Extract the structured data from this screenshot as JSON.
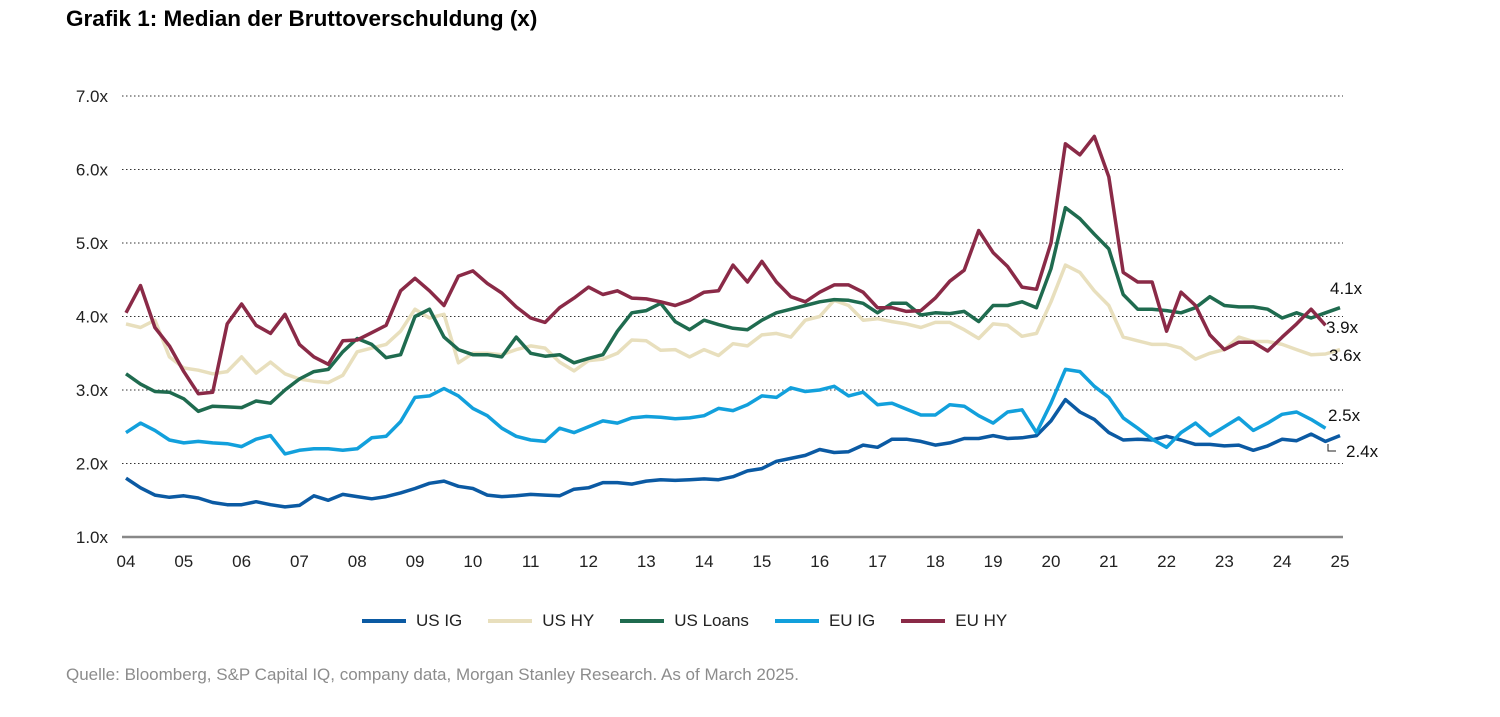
{
  "title": "Grafik 1: Median der Bruttoverschuldung (x)",
  "source": "Quelle: Bloomberg, S&P Capital IQ, company data, Morgan Stanley Research. As of March 2025.",
  "chart_data": {
    "type": "line",
    "title": "Grafik 1: Median der Bruttoverschuldung (x)",
    "xlabel": "",
    "ylabel": "",
    "x_start": 2004,
    "x_step": "quarterly",
    "xlim": [
      2004,
      2025
    ],
    "ylim": [
      1.0,
      7.0
    ],
    "x_tick_labels": [
      "04",
      "05",
      "06",
      "07",
      "08",
      "09",
      "10",
      "11",
      "12",
      "13",
      "14",
      "15",
      "16",
      "17",
      "18",
      "19",
      "20",
      "21",
      "22",
      "23",
      "24",
      "25"
    ],
    "y_ticks": [
      1,
      2,
      3,
      4,
      5,
      6,
      7
    ],
    "y_tick_labels": [
      "1.0x",
      "2.0x",
      "3.0x",
      "4.0x",
      "5.0x",
      "6.0x",
      "7.0x"
    ],
    "grid": "horizontal dotted",
    "legend": "bottom",
    "series": [
      {
        "name": "US IG",
        "color": "#0b5aa3",
        "end_label": "2.4x",
        "values": [
          1.8,
          1.67,
          1.57,
          1.54,
          1.56,
          1.53,
          1.47,
          1.44,
          1.44,
          1.48,
          1.44,
          1.41,
          1.43,
          1.56,
          1.5,
          1.58,
          1.55,
          1.52,
          1.55,
          1.6,
          1.66,
          1.73,
          1.76,
          1.69,
          1.66,
          1.57,
          1.55,
          1.56,
          1.58,
          1.57,
          1.56,
          1.65,
          1.67,
          1.74,
          1.74,
          1.72,
          1.76,
          1.78,
          1.77,
          1.78,
          1.79,
          1.78,
          1.82,
          1.9,
          1.93,
          2.03,
          2.07,
          2.11,
          2.19,
          2.15,
          2.16,
          2.25,
          2.22,
          2.33,
          2.33,
          2.3,
          2.25,
          2.28,
          2.34,
          2.34,
          2.38,
          2.34,
          2.35,
          2.38,
          2.58,
          2.87,
          2.7,
          2.6,
          2.42,
          2.32,
          2.33,
          2.32,
          2.37,
          2.32,
          2.26,
          2.26,
          2.24,
          2.25,
          2.18,
          2.24,
          2.33,
          2.31,
          2.4,
          2.3,
          2.38
        ]
      },
      {
        "name": "US HY",
        "color": "#e8dfbd",
        "end_label": "3.6x",
        "values": [
          3.9,
          3.85,
          3.95,
          3.45,
          3.3,
          3.27,
          3.22,
          3.25,
          3.45,
          3.23,
          3.38,
          3.22,
          3.15,
          3.12,
          3.1,
          3.2,
          3.52,
          3.57,
          3.62,
          3.8,
          4.1,
          3.98,
          4.03,
          3.37,
          3.5,
          3.5,
          3.48,
          3.55,
          3.6,
          3.57,
          3.38,
          3.26,
          3.4,
          3.42,
          3.5,
          3.68,
          3.67,
          3.54,
          3.55,
          3.45,
          3.55,
          3.47,
          3.63,
          3.6,
          3.75,
          3.77,
          3.72,
          3.95,
          4.0,
          4.22,
          4.15,
          3.95,
          3.97,
          3.93,
          3.9,
          3.85,
          3.92,
          3.92,
          3.82,
          3.7,
          3.9,
          3.88,
          3.73,
          3.77,
          4.2,
          4.7,
          4.6,
          4.35,
          4.15,
          3.72,
          3.67,
          3.62,
          3.62,
          3.57,
          3.42,
          3.5,
          3.55,
          3.72,
          3.66,
          3.66,
          3.62,
          3.55,
          3.48,
          3.49,
          3.55
        ]
      },
      {
        "name": "US Loans",
        "color": "#1f6b4f",
        "end_label": "4.1x",
        "values": [
          3.22,
          3.08,
          2.98,
          2.97,
          2.88,
          2.71,
          2.78,
          2.77,
          2.76,
          2.85,
          2.82,
          3.0,
          3.15,
          3.25,
          3.28,
          3.52,
          3.7,
          3.62,
          3.44,
          3.48,
          4.0,
          4.1,
          3.72,
          3.55,
          3.48,
          3.48,
          3.45,
          3.72,
          3.5,
          3.46,
          3.48,
          3.37,
          3.43,
          3.48,
          3.8,
          4.05,
          4.08,
          4.18,
          3.93,
          3.82,
          3.95,
          3.89,
          3.84,
          3.82,
          3.95,
          4.05,
          4.1,
          4.15,
          4.2,
          4.23,
          4.22,
          4.18,
          4.05,
          4.18,
          4.18,
          4.02,
          4.05,
          4.04,
          4.07,
          3.93,
          4.15,
          4.15,
          4.2,
          4.12,
          4.65,
          5.48,
          5.33,
          5.12,
          4.92,
          4.3,
          4.1,
          4.1,
          4.08,
          4.05,
          4.12,
          4.27,
          4.15,
          4.13,
          4.13,
          4.1,
          3.98,
          4.05,
          3.98,
          4.05,
          4.12
        ]
      },
      {
        "name": "EU IG",
        "color": "#12a0dc",
        "end_label": "2.5x",
        "values": [
          2.42,
          2.55,
          2.45,
          2.32,
          2.28,
          2.3,
          2.28,
          2.27,
          2.23,
          2.33,
          2.38,
          2.13,
          2.18,
          2.2,
          2.2,
          2.18,
          2.2,
          2.35,
          2.37,
          2.57,
          2.9,
          2.92,
          3.02,
          2.92,
          2.75,
          2.65,
          2.48,
          2.37,
          2.32,
          2.3,
          2.48,
          2.42,
          2.5,
          2.58,
          2.55,
          2.62,
          2.64,
          2.63,
          2.61,
          2.62,
          2.65,
          2.75,
          2.72,
          2.8,
          2.92,
          2.9,
          3.03,
          2.98,
          3.0,
          3.05,
          2.92,
          2.97,
          2.8,
          2.82,
          2.74,
          2.66,
          2.66,
          2.8,
          2.78,
          2.65,
          2.55,
          2.7,
          2.73,
          2.42,
          2.82,
          3.28,
          3.25,
          3.05,
          2.9,
          2.62,
          2.48,
          2.33,
          2.22,
          2.42,
          2.55,
          2.38,
          2.5,
          2.62,
          2.45,
          2.55,
          2.67,
          2.7,
          2.6,
          2.48
        ]
      },
      {
        "name": "EU HY",
        "color": "#8a2a47",
        "end_label": "3.9x",
        "values": [
          4.05,
          4.42,
          3.85,
          3.6,
          3.25,
          2.95,
          2.97,
          3.9,
          4.17,
          3.88,
          3.77,
          4.03,
          3.62,
          3.45,
          3.35,
          3.67,
          3.68,
          3.78,
          3.88,
          4.35,
          4.52,
          4.35,
          4.15,
          4.55,
          4.62,
          4.45,
          4.32,
          4.13,
          3.98,
          3.92,
          4.12,
          4.25,
          4.4,
          4.3,
          4.35,
          4.25,
          4.24,
          4.2,
          4.15,
          4.22,
          4.33,
          4.35,
          4.7,
          4.47,
          4.75,
          4.47,
          4.27,
          4.2,
          4.33,
          4.43,
          4.43,
          4.33,
          4.12,
          4.12,
          4.07,
          4.08,
          4.25,
          4.48,
          4.63,
          5.17,
          4.87,
          4.68,
          4.4,
          4.37,
          5.0,
          6.35,
          6.2,
          6.45,
          5.9,
          4.6,
          4.47,
          4.47,
          3.8,
          4.33,
          4.15,
          3.75,
          3.55,
          3.65,
          3.65,
          3.53,
          3.72,
          3.9,
          4.1,
          3.88
        ]
      }
    ]
  }
}
